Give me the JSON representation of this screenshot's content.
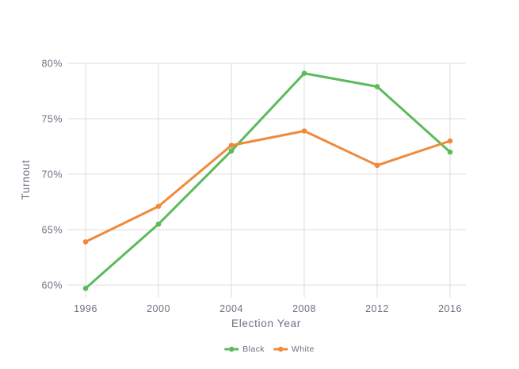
{
  "colors": {
    "background": "#ffffff",
    "gridline": "#dcdce1",
    "text": "#6e7080",
    "series_black": "#5cba5c",
    "series_white": "#ef8a3c"
  },
  "chart_data": {
    "type": "line",
    "title": "",
    "xlabel": "Election Year",
    "ylabel": "Turnout",
    "categories": [
      "1996",
      "2000",
      "2004",
      "2008",
      "2012",
      "2016"
    ],
    "series": [
      {
        "name": "Black",
        "color": "#5cba5c",
        "values": [
          59.7,
          65.5,
          72.1,
          79.1,
          77.9,
          72.0
        ]
      },
      {
        "name": "White",
        "color": "#ef8a3c",
        "values": [
          63.9,
          67.1,
          72.6,
          73.9,
          70.8,
          73.0
        ]
      }
    ],
    "y_ticks": [
      {
        "value": 60,
        "label": "60%"
      },
      {
        "value": 65,
        "label": "65%"
      },
      {
        "value": 70,
        "label": "70%"
      },
      {
        "value": 75,
        "label": "75%"
      },
      {
        "value": 80,
        "label": "80%"
      }
    ],
    "ylim": [
      58.9,
      80
    ],
    "grid": true,
    "legend_position": "bottom-center",
    "legend_entries": [
      "Black",
      "White"
    ]
  }
}
